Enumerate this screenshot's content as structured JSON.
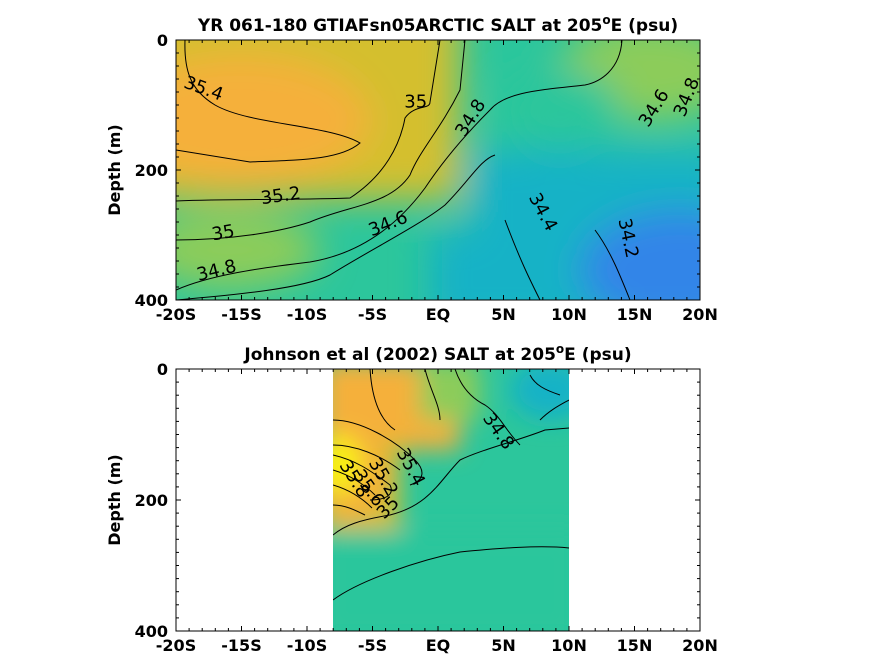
{
  "chart_data": [
    {
      "type": "contour",
      "title": "YR 061-180 GTIAFsn05ARCTIC SALT at 205",
      "title_sup": "o",
      "title_suffix": "E (psu)",
      "xlabel": "",
      "ylabel": "Depth (m)",
      "x_ticks": [
        -20,
        -15,
        -10,
        -5,
        0,
        5,
        10,
        15,
        20
      ],
      "x_tick_labels": [
        "-20S",
        "-15S",
        "-10S",
        "-5S",
        "EQ",
        "5N",
        "10N",
        "15N",
        "20N"
      ],
      "y_ticks": [
        0,
        200,
        400
      ],
      "y_tick_labels": [
        "0",
        "200",
        "400"
      ],
      "xlim": [
        -20,
        20
      ],
      "ylim": [
        400,
        0
      ],
      "y_reversed": true,
      "colormap": [
        "#3085e8",
        "#14b2c6",
        "#2cc69c",
        "#8ccc5a",
        "#d4bf2e",
        "#f5b03a",
        "#f9f10a"
      ],
      "contour_labels": [
        {
          "text": "35.4",
          "x": -17.9,
          "y": 75,
          "angle": 20
        },
        {
          "text": "35",
          "x": -1.7,
          "y": 95,
          "angle": 0
        },
        {
          "text": "34.8",
          "x": 2.5,
          "y": 120,
          "angle": -58
        },
        {
          "text": "34.6",
          "x": 16.5,
          "y": 105,
          "angle": -58
        },
        {
          "text": "34.8",
          "x": 19,
          "y": 88,
          "angle": -68
        },
        {
          "text": "35.2",
          "x": -12,
          "y": 240,
          "angle": -8
        },
        {
          "text": "35",
          "x": -16.4,
          "y": 297,
          "angle": -10
        },
        {
          "text": "34.6",
          "x": -3.8,
          "y": 283,
          "angle": -22
        },
        {
          "text": "34.4",
          "x": 8,
          "y": 265,
          "angle": 62
        },
        {
          "text": "34.2",
          "x": 14.5,
          "y": 305,
          "angle": 78
        },
        {
          "text": "34.8",
          "x": -16.9,
          "y": 355,
          "angle": -14
        }
      ]
    },
    {
      "type": "contour",
      "title": "Johnson et al (2002) SALT at 205",
      "title_sup": "o",
      "title_suffix": "E (psu)",
      "xlabel": "",
      "ylabel": "Depth (m)",
      "x_ticks": [
        -20,
        -15,
        -10,
        -5,
        0,
        5,
        10,
        15,
        20
      ],
      "x_tick_labels": [
        "-20S",
        "-15S",
        "-10S",
        "-5S",
        "EQ",
        "5N",
        "10N",
        "15N",
        "20N"
      ],
      "y_ticks": [
        0,
        200,
        400
      ],
      "y_tick_labels": [
        "0",
        "200",
        "400"
      ],
      "xlim": [
        -20,
        20
      ],
      "ylim": [
        400,
        0
      ],
      "y_reversed": true,
      "data_xrange": [
        -8,
        10
      ],
      "colormap": [
        "#3085e8",
        "#14b2c6",
        "#2cc69c",
        "#8ccc5a",
        "#d4bf2e",
        "#f5b03a",
        "#f9f10a"
      ],
      "contour_labels": [
        {
          "text": "34.8",
          "x": 4.6,
          "y": 95,
          "angle": 55
        },
        {
          "text": "35",
          "x": -3.8,
          "y": 212,
          "angle": -45
        },
        {
          "text": "35.2",
          "x": -4.2,
          "y": 165,
          "angle": 60
        },
        {
          "text": "35.4",
          "x": -2.1,
          "y": 150,
          "angle": 62
        },
        {
          "text": "35.6",
          "x": -5.3,
          "y": 182,
          "angle": 55
        },
        {
          "text": "35.8",
          "x": -6.4,
          "y": 168,
          "angle": 58
        }
      ]
    }
  ]
}
